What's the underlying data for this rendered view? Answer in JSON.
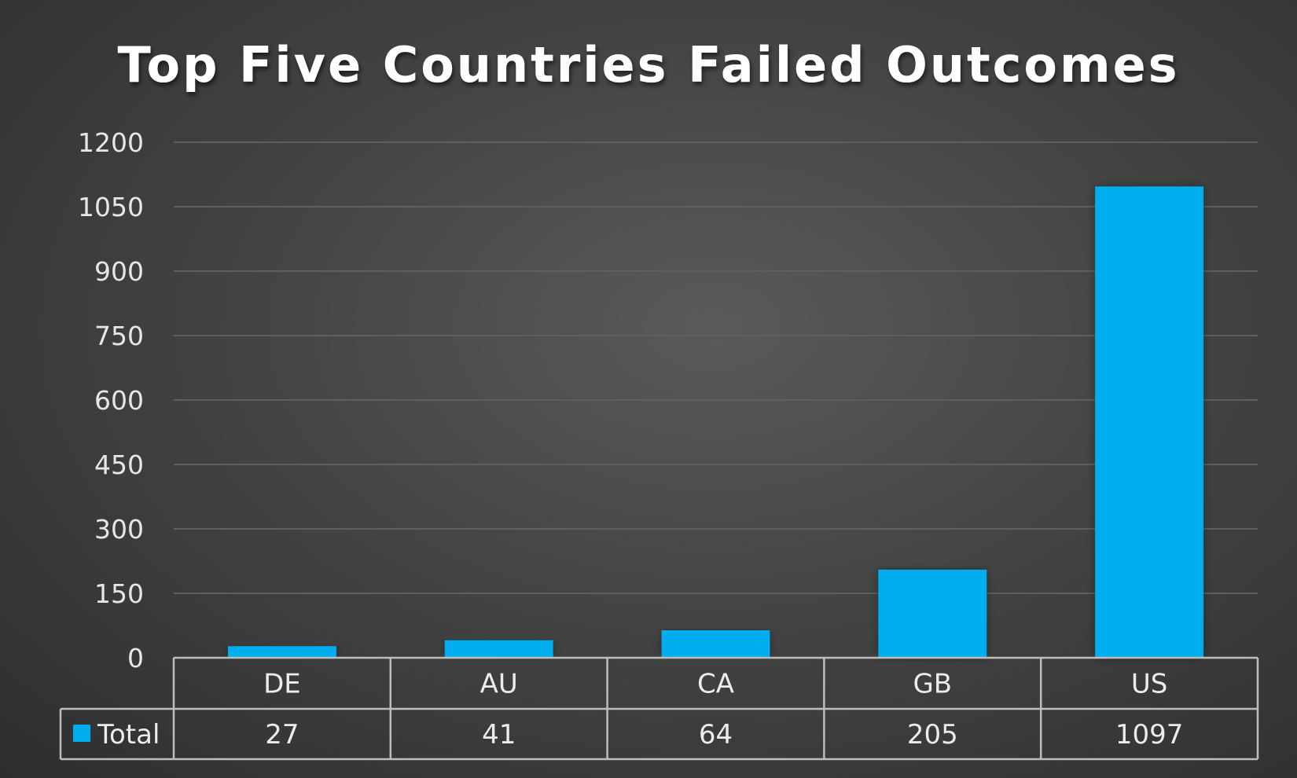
{
  "chart_data": {
    "type": "bar",
    "title": "Top Five Countries Failed Outcomes",
    "categories": [
      "DE",
      "AU",
      "CA",
      "GB",
      "US"
    ],
    "series": [
      {
        "name": "Total",
        "values": [
          27,
          41,
          64,
          205,
          1097
        ],
        "color": "#00aeef"
      }
    ],
    "ylim": [
      0,
      1200
    ],
    "yticks": [
      0,
      150,
      300,
      450,
      600,
      750,
      900,
      1050,
      1200
    ],
    "grid": true,
    "data_table": true,
    "legend": "data-table-row"
  },
  "colors": {
    "bar": "#00aeef",
    "text": "#ffffff"
  }
}
